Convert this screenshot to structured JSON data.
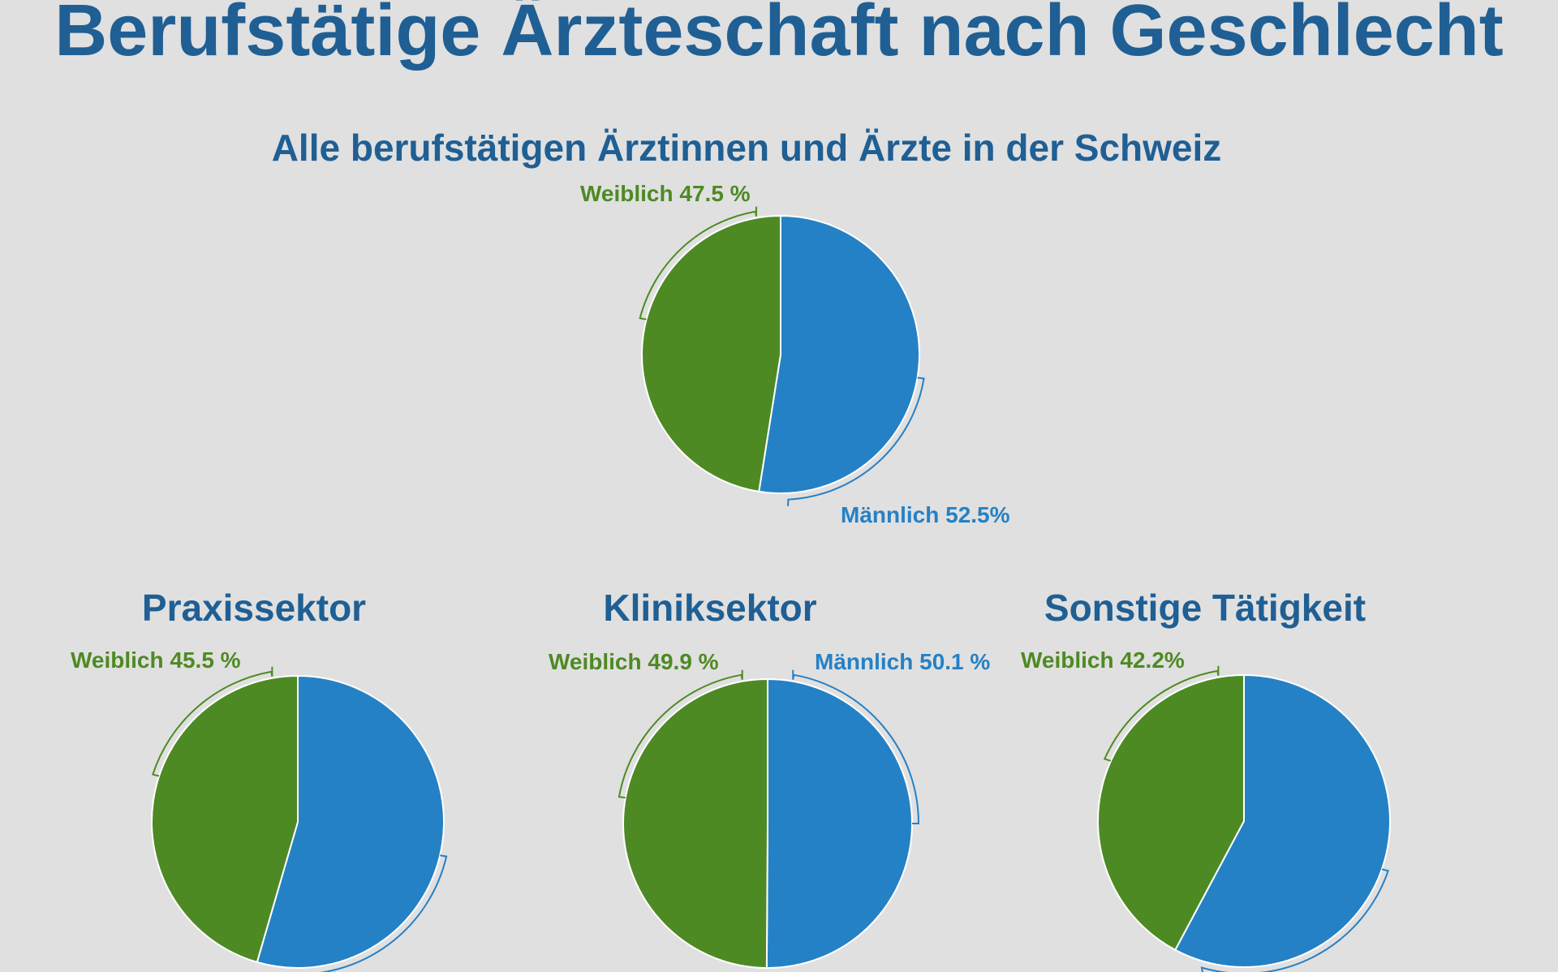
{
  "page": {
    "title": "Berufstätige Ärzteschaft nach Geschlecht",
    "background": "#e0e0e0",
    "colors": {
      "female": "#4e8a24",
      "male": "#2581c5",
      "title": "#1f5f94"
    }
  },
  "chart_data": [
    {
      "type": "pie",
      "title": "Alle berufstätigen Ärztinnen und Ärzte in der Schweiz",
      "slices": [
        {
          "name": "Weiblich",
          "value": 47.5,
          "label": "Weiblich 47.5 %",
          "color": "#4e8a24"
        },
        {
          "name": "Männlich",
          "value": 52.5,
          "label": "Männlich 52.5%",
          "color": "#2581c5"
        }
      ]
    },
    {
      "type": "pie",
      "title": "Praxissektor",
      "slices": [
        {
          "name": "Weiblich",
          "value": 45.5,
          "label": "Weiblich 45.5 %",
          "color": "#4e8a24"
        },
        {
          "name": "Männlich",
          "value": 54.5,
          "label": "",
          "color": "#2581c5"
        }
      ]
    },
    {
      "type": "pie",
      "title": "Kliniksektor",
      "slices": [
        {
          "name": "Weiblich",
          "value": 49.9,
          "label": "Weiblich 49.9 %",
          "color": "#4e8a24"
        },
        {
          "name": "Männlich",
          "value": 50.1,
          "label": "Männlich 50.1 %",
          "color": "#2581c5"
        }
      ]
    },
    {
      "type": "pie",
      "title": "Sonstige Tätigkeit",
      "slices": [
        {
          "name": "Weiblich",
          "value": 42.2,
          "label": "Weiblich 42.2%",
          "color": "#4e8a24"
        },
        {
          "name": "Männlich",
          "value": 57.8,
          "label": "",
          "color": "#2581c5"
        }
      ]
    }
  ]
}
